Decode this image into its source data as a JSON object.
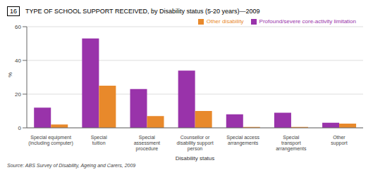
{
  "chart_data": {
    "type": "bar",
    "title": "TYPE OF SCHOOL SUPPORT RECEIVED, by Disability status (5-20 years)—2009",
    "annotations": [
      "16",
      "Source: ABS Survey of Disability, Ageing and Carers, 2009"
    ],
    "categories": [
      "Special equipment\n(including computer)",
      "Special\ntuition",
      "Special\nassessment\nprocedure",
      "Counsellor or\ndisability support\nperson",
      "Special access\narrangements",
      "Special\ntransport\narrangements",
      "Other\nsupport"
    ],
    "xlabel": "Disability status",
    "ylabel": "%",
    "series": [
      {
        "name": "Profound/severe core-activity limitation",
        "color": "#9933AA",
        "values": [
          12,
          53,
          23,
          34,
          8,
          9,
          3
        ]
      },
      {
        "name": "Other disability",
        "color": "#E8892B",
        "values": [
          2,
          25,
          7,
          10,
          0.5,
          0.5,
          2.5
        ]
      }
    ],
    "ylim": [
      0,
      60
    ],
    "yticks": [
      0,
      20,
      40,
      60
    ],
    "grid": true,
    "legend": "upper right"
  }
}
